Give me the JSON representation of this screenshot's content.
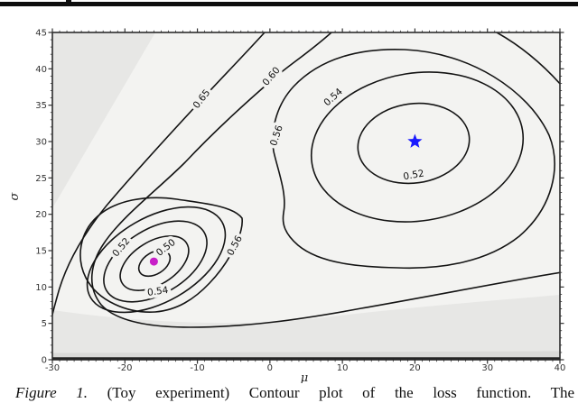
{
  "figure": {
    "caption_label": "Figure 1.",
    "caption_text": "(Toy experiment) Contour plot of the loss function. The"
  },
  "chart_data": {
    "type": "contour",
    "title": "",
    "xlabel": "μ",
    "ylabel": "σ",
    "xlim": [
      -30,
      40
    ],
    "ylim": [
      0,
      45
    ],
    "x_ticks": [
      -30,
      -20,
      -10,
      0,
      10,
      20,
      30,
      40
    ],
    "y_ticks": [
      0,
      5,
      10,
      15,
      20,
      25,
      30,
      35,
      40,
      45
    ],
    "grid": false,
    "legend": "none",
    "contour_levels": [
      0.5,
      0.52,
      0.54,
      0.56,
      0.6,
      0.65
    ],
    "contour_labels": [
      {
        "text": "0.65",
        "mu": -9.1,
        "sigma": 35.6,
        "rot": -52
      },
      {
        "text": "0.60",
        "mu": 0.5,
        "sigma": 38.7,
        "rot": -50
      },
      {
        "text": "0.56",
        "mu": 1.3,
        "sigma": 30.7,
        "rot": -72
      },
      {
        "text": "0.54",
        "mu": 9.0,
        "sigma": 35.8,
        "rot": -42
      },
      {
        "text": "0.52",
        "mu": 19.9,
        "sigma": 25.0,
        "rot": -10
      },
      {
        "text": "0.52",
        "mu": -20.2,
        "sigma": 15.2,
        "rot": -50
      },
      {
        "text": "0.50",
        "mu": -14.1,
        "sigma": 15.1,
        "rot": -38
      },
      {
        "text": "0.54",
        "mu": -15.4,
        "sigma": 9.0,
        "rot": -8
      },
      {
        "text": "0.56",
        "mu": -4.5,
        "sigma": 15.5,
        "rot": -62
      }
    ],
    "markers": [
      {
        "name": "left-minimum-dot",
        "type": "dot",
        "color": "#c820c8",
        "mu": -16,
        "sigma": 13.5
      },
      {
        "name": "right-minimum-star",
        "type": "star",
        "color": "#1a1aff",
        "mu": 20,
        "sigma": 30
      }
    ],
    "colors": {
      "plot_background": "#f3f3f1",
      "shaded_band": "#e7e7e5",
      "dark_band": "#dadad8",
      "contour_line": "#141414"
    }
  }
}
